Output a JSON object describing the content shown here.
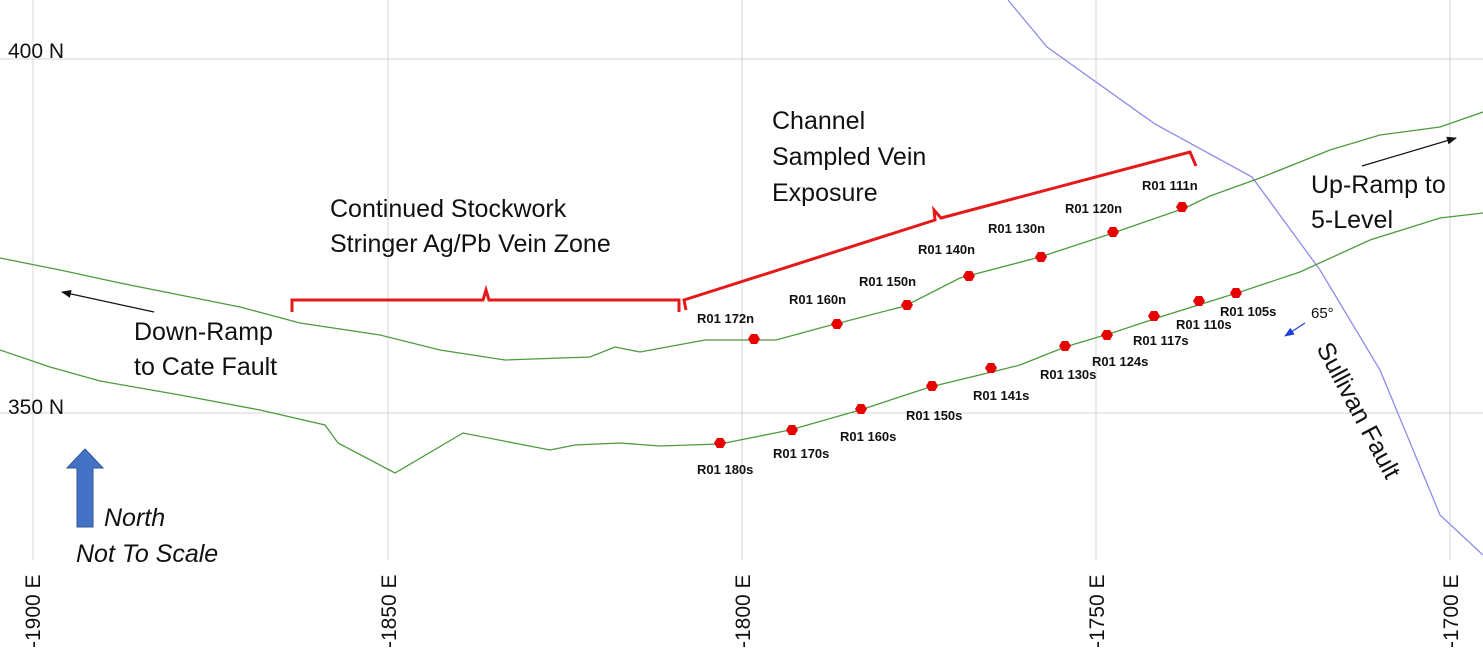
{
  "grid": {
    "northing_labels": [
      "400 N",
      "350 N"
    ],
    "easting_labels": [
      "-1900 E",
      "-1850 E",
      "-1800 E",
      "-1750 E",
      "-1700 E"
    ]
  },
  "annotations": {
    "stockwork_zone": [
      "Continued Stockwork",
      "Stringer Ag/Pb Vein Zone"
    ],
    "channel_sampled": [
      "Channel",
      "Sampled Vein",
      "Exposure"
    ],
    "down_ramp": [
      "Down-Ramp",
      "to Cate Fault"
    ],
    "up_ramp": [
      "Up-Ramp to",
      "5-Level"
    ],
    "fault_name": "Sullivan Fault",
    "dip": "65°",
    "north": "North",
    "scale_note": "Not To Scale"
  },
  "samples_north": [
    "R01 172n",
    "R01 160n",
    "R01 150n",
    "R01 140n",
    "R01 130n",
    "R01 120n",
    "R01 111n"
  ],
  "samples_south": [
    "R01 180s",
    "R01 170s",
    "R01 160s",
    "R01 150s",
    "R01 141s",
    "R01 130s",
    "R01 124s",
    "R01 117s",
    "R01 110s",
    "R01 105s"
  ],
  "colors": {
    "grid": "#d4d4d4",
    "wall": "#4e9a3e",
    "sample": "#e80000",
    "bracket": "#e41a1a",
    "fault": "#8c8ce8",
    "north_arrow": "#4472c4",
    "dip_arrow": "#1f3fd8"
  }
}
